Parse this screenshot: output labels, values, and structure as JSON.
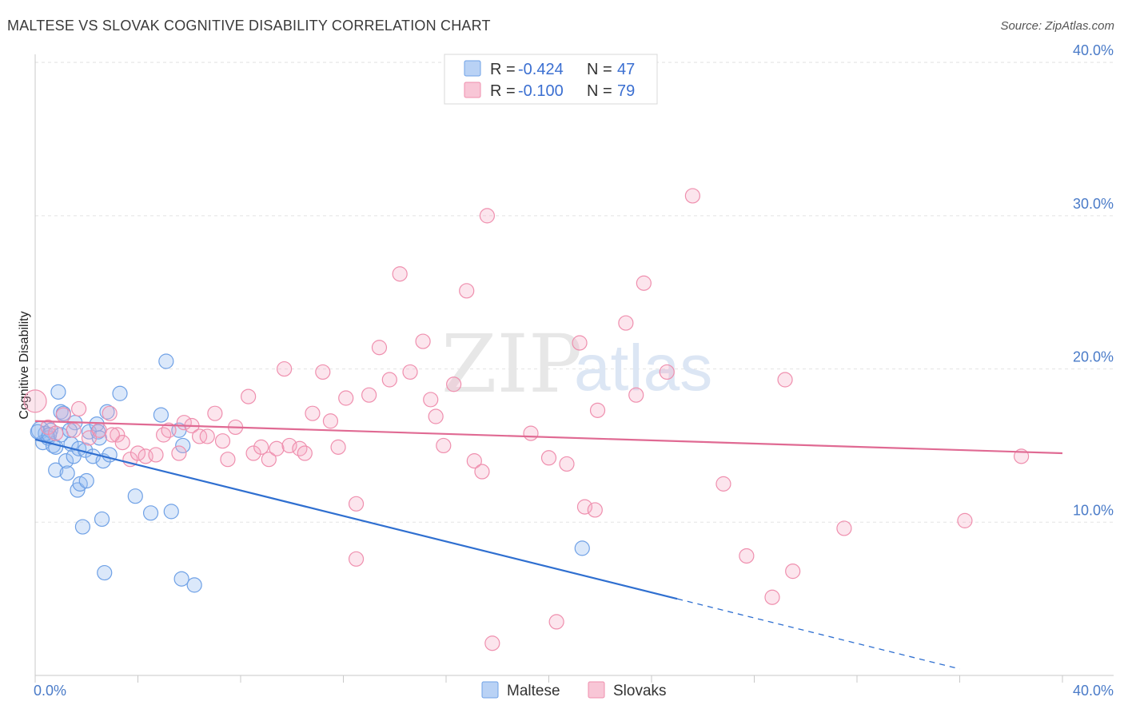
{
  "header": {
    "title": "MALTESE VS SLOVAK COGNITIVE DISABILITY CORRELATION CHART",
    "source": "Source: ZipAtlas.com"
  },
  "watermark": {
    "zip": "ZIP",
    "atlas": "atlas"
  },
  "legend": {
    "r_label": "R =",
    "n_label": "N =",
    "rows": [
      {
        "name": "Maltese",
        "r": "-0.424",
        "n": "47",
        "color": "#6fa1e6"
      },
      {
        "name": "Slovaks",
        "r": "-0.100",
        "n": "79",
        "color": "#ef8fae"
      }
    ]
  },
  "chart_data": {
    "type": "scatter",
    "title": "MALTESE VS SLOVAK COGNITIVE DISABILITY CORRELATION CHART",
    "xlabel": "",
    "ylabel": "Cognitive Disability",
    "xlim": [
      0,
      40
    ],
    "ylim": [
      0,
      41
    ],
    "x_tick_labels": [
      "0.0%",
      "40.0%"
    ],
    "y_ticks": [
      {
        "value": 10,
        "label": "10.0%"
      },
      {
        "value": 20,
        "label": "20.0%"
      },
      {
        "value": 30,
        "label": "30.0%"
      },
      {
        "value": 40,
        "label": "40.0%"
      }
    ],
    "grid": true,
    "legend_position": "top-center",
    "series": [
      {
        "name": "Maltese",
        "color": "#6fa1e6",
        "line_color": "#2f6fd0",
        "trend": {
          "x0": 0,
          "y0": 15.4,
          "x1": 25.0,
          "y1": 5.0,
          "x_dash_end": 36.0
        },
        "points": [
          [
            0.2,
            16.0
          ],
          [
            0.3,
            15.2
          ],
          [
            0.4,
            15.8
          ],
          [
            0.5,
            15.5
          ],
          [
            0.6,
            16.0
          ],
          [
            0.7,
            15.0
          ],
          [
            0.8,
            14.9
          ],
          [
            0.8,
            13.4
          ],
          [
            0.9,
            18.5
          ],
          [
            1.0,
            17.2
          ],
          [
            1.1,
            17.1
          ],
          [
            1.2,
            14.0
          ],
          [
            1.25,
            13.2
          ],
          [
            1.4,
            15.1
          ],
          [
            1.5,
            14.3
          ],
          [
            1.55,
            16.5
          ],
          [
            1.65,
            12.1
          ],
          [
            1.7,
            14.8
          ],
          [
            1.75,
            12.5
          ],
          [
            1.85,
            9.7
          ],
          [
            1.95,
            14.7
          ],
          [
            2.0,
            12.7
          ],
          [
            2.1,
            15.9
          ],
          [
            2.25,
            14.3
          ],
          [
            2.4,
            16.4
          ],
          [
            2.45,
            15.9
          ],
          [
            2.5,
            15.5
          ],
          [
            2.6,
            10.2
          ],
          [
            2.65,
            14.0
          ],
          [
            2.7,
            6.7
          ],
          [
            2.8,
            17.2
          ],
          [
            2.9,
            14.4
          ],
          [
            3.3,
            18.4
          ],
          [
            3.9,
            11.7
          ],
          [
            4.5,
            10.6
          ],
          [
            4.9,
            17.0
          ],
          [
            5.1,
            20.5
          ],
          [
            5.3,
            10.7
          ],
          [
            5.6,
            16.0
          ],
          [
            5.75,
            15.0
          ],
          [
            5.7,
            6.3
          ],
          [
            6.2,
            5.9
          ],
          [
            21.3,
            8.3
          ],
          [
            0.1,
            15.9
          ],
          [
            0.55,
            15.7
          ],
          [
            1.0,
            15.7
          ],
          [
            1.35,
            16.0
          ]
        ]
      },
      {
        "name": "Slovaks",
        "color": "#ef8fae",
        "line_color": "#e06a93",
        "trend": {
          "x0": 0,
          "y0": 16.6,
          "x1": 40.0,
          "y1": 14.5
        },
        "points": [
          [
            0.0,
            17.9
          ],
          [
            0.5,
            16.2
          ],
          [
            0.8,
            15.8
          ],
          [
            1.1,
            17.0
          ],
          [
            1.5,
            16.0
          ],
          [
            1.7,
            17.4
          ],
          [
            2.1,
            15.5
          ],
          [
            2.5,
            16.0
          ],
          [
            2.9,
            17.1
          ],
          [
            3.2,
            15.7
          ],
          [
            3.4,
            15.2
          ],
          [
            3.7,
            14.1
          ],
          [
            4.0,
            14.5
          ],
          [
            4.3,
            14.3
          ],
          [
            4.7,
            14.4
          ],
          [
            5.0,
            15.7
          ],
          [
            5.2,
            16.0
          ],
          [
            5.6,
            14.5
          ],
          [
            5.8,
            16.5
          ],
          [
            6.1,
            16.3
          ],
          [
            6.4,
            15.6
          ],
          [
            6.7,
            15.6
          ],
          [
            7.0,
            17.1
          ],
          [
            7.3,
            15.3
          ],
          [
            7.5,
            14.1
          ],
          [
            7.8,
            16.2
          ],
          [
            8.3,
            18.2
          ],
          [
            8.5,
            14.5
          ],
          [
            8.8,
            14.9
          ],
          [
            9.1,
            14.1
          ],
          [
            9.4,
            14.8
          ],
          [
            9.7,
            20.0
          ],
          [
            9.9,
            15.0
          ],
          [
            10.3,
            14.8
          ],
          [
            10.5,
            14.5
          ],
          [
            10.8,
            17.1
          ],
          [
            11.2,
            19.8
          ],
          [
            11.5,
            16.6
          ],
          [
            11.8,
            14.9
          ],
          [
            12.1,
            18.1
          ],
          [
            12.5,
            11.2
          ],
          [
            12.5,
            7.6
          ],
          [
            13.0,
            18.3
          ],
          [
            13.4,
            21.4
          ],
          [
            13.8,
            19.3
          ],
          [
            14.2,
            26.2
          ],
          [
            14.6,
            19.8
          ],
          [
            15.1,
            21.8
          ],
          [
            15.4,
            18.0
          ],
          [
            15.6,
            16.9
          ],
          [
            15.9,
            15.0
          ],
          [
            16.3,
            19.0
          ],
          [
            16.8,
            25.1
          ],
          [
            17.1,
            14.0
          ],
          [
            17.4,
            13.3
          ],
          [
            17.6,
            30.0
          ],
          [
            17.8,
            2.1
          ],
          [
            19.3,
            15.8
          ],
          [
            20.0,
            14.2
          ],
          [
            20.3,
            3.5
          ],
          [
            20.7,
            13.8
          ],
          [
            21.2,
            21.7
          ],
          [
            21.4,
            11.0
          ],
          [
            21.8,
            10.8
          ],
          [
            21.9,
            17.3
          ],
          [
            23.0,
            23.0
          ],
          [
            23.4,
            18.3
          ],
          [
            23.7,
            25.6
          ],
          [
            24.6,
            19.8
          ],
          [
            25.6,
            31.3
          ],
          [
            26.8,
            12.5
          ],
          [
            27.7,
            7.8
          ],
          [
            28.7,
            5.1
          ],
          [
            29.2,
            19.3
          ],
          [
            29.5,
            6.8
          ],
          [
            31.5,
            9.6
          ],
          [
            36.2,
            10.1
          ],
          [
            38.4,
            14.3
          ],
          [
            3.0,
            15.7
          ]
        ]
      }
    ]
  }
}
